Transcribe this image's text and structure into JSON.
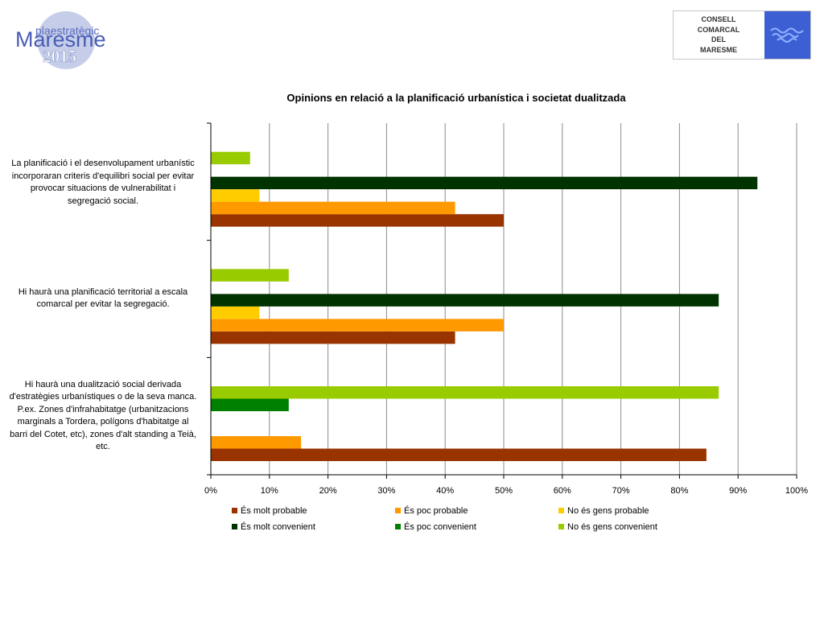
{
  "header": {
    "left_logo": {
      "top_text": "plaestratègic",
      "main_text": "Maresme",
      "year_text": "2015"
    },
    "right_logo": {
      "lines": [
        "CONSELL",
        "COMARCAL",
        "DEL",
        "MARESME"
      ],
      "accent": "#3d5fd4"
    }
  },
  "chart_data": {
    "type": "bar",
    "orientation": "horizontal",
    "title": "Opinions en relació a la planificació urbanística i societat dualitzada",
    "categories": [
      "La planificació i el desenvolupament urbanístic incorporaran criteris d'equilibri social per evitar provocar situacions de vulnerabilitat i segregació social.",
      "Hi haurà una planificació territorial a escala comarcal per evitar la segregació.",
      "Hi haurà una dualització social derivada d'estratègies urbanístiques o de la seva manca. P.ex. Zones d'infrahabitatge (urbanitzacions marginals a Tordera, polígons d'habitatge al barri del Cotet, etc), zones d'alt standing a Teià, etc."
    ],
    "category_lines": [
      [
        "La planificació i el desenvolupament urbanístic",
        "incorporaran criteris d'equilibri social per evitar",
        "provocar situacions de vulnerabilitat i",
        "segregació social."
      ],
      [
        "Hi haurà una planificació territorial a escala",
        "comarcal per evitar la segregació."
      ],
      [
        "Hi haurà una dualització social derivada",
        "d'estratègies urbanístiques o de la seva manca.",
        "P.ex. Zones d'infrahabitatge (urbanitzacions",
        "marginals a Tordera, polígons d'habitatge al",
        "barri del Cotet, etc), zones d'alt standing a Teià,",
        "etc."
      ]
    ],
    "series": [
      {
        "name": "És molt probable",
        "color": "#993300",
        "values": [
          50,
          41.7,
          84.6
        ]
      },
      {
        "name": "És poc probable",
        "color": "#ff9900",
        "values": [
          41.7,
          50,
          15.4
        ]
      },
      {
        "name": "No és gens probable",
        "color": "#ffcc00",
        "values": [
          8.3,
          8.3,
          0
        ]
      },
      {
        "name": "És molt convenient",
        "color": "#003300",
        "values": [
          93.3,
          86.7,
          0
        ]
      },
      {
        "name": "És poc convenient",
        "color": "#008000",
        "values": [
          0,
          0,
          13.3
        ]
      },
      {
        "name": "No és gens convenient",
        "color": "#99cc00",
        "values": [
          6.7,
          13.3,
          86.7
        ]
      }
    ],
    "xlim": [
      0,
      100
    ],
    "x_ticks": [
      "0%",
      "10%",
      "20%",
      "30%",
      "40%",
      "50%",
      "60%",
      "70%",
      "80%",
      "90%",
      "100%"
    ],
    "grid": true,
    "legend_position": "bottom"
  }
}
